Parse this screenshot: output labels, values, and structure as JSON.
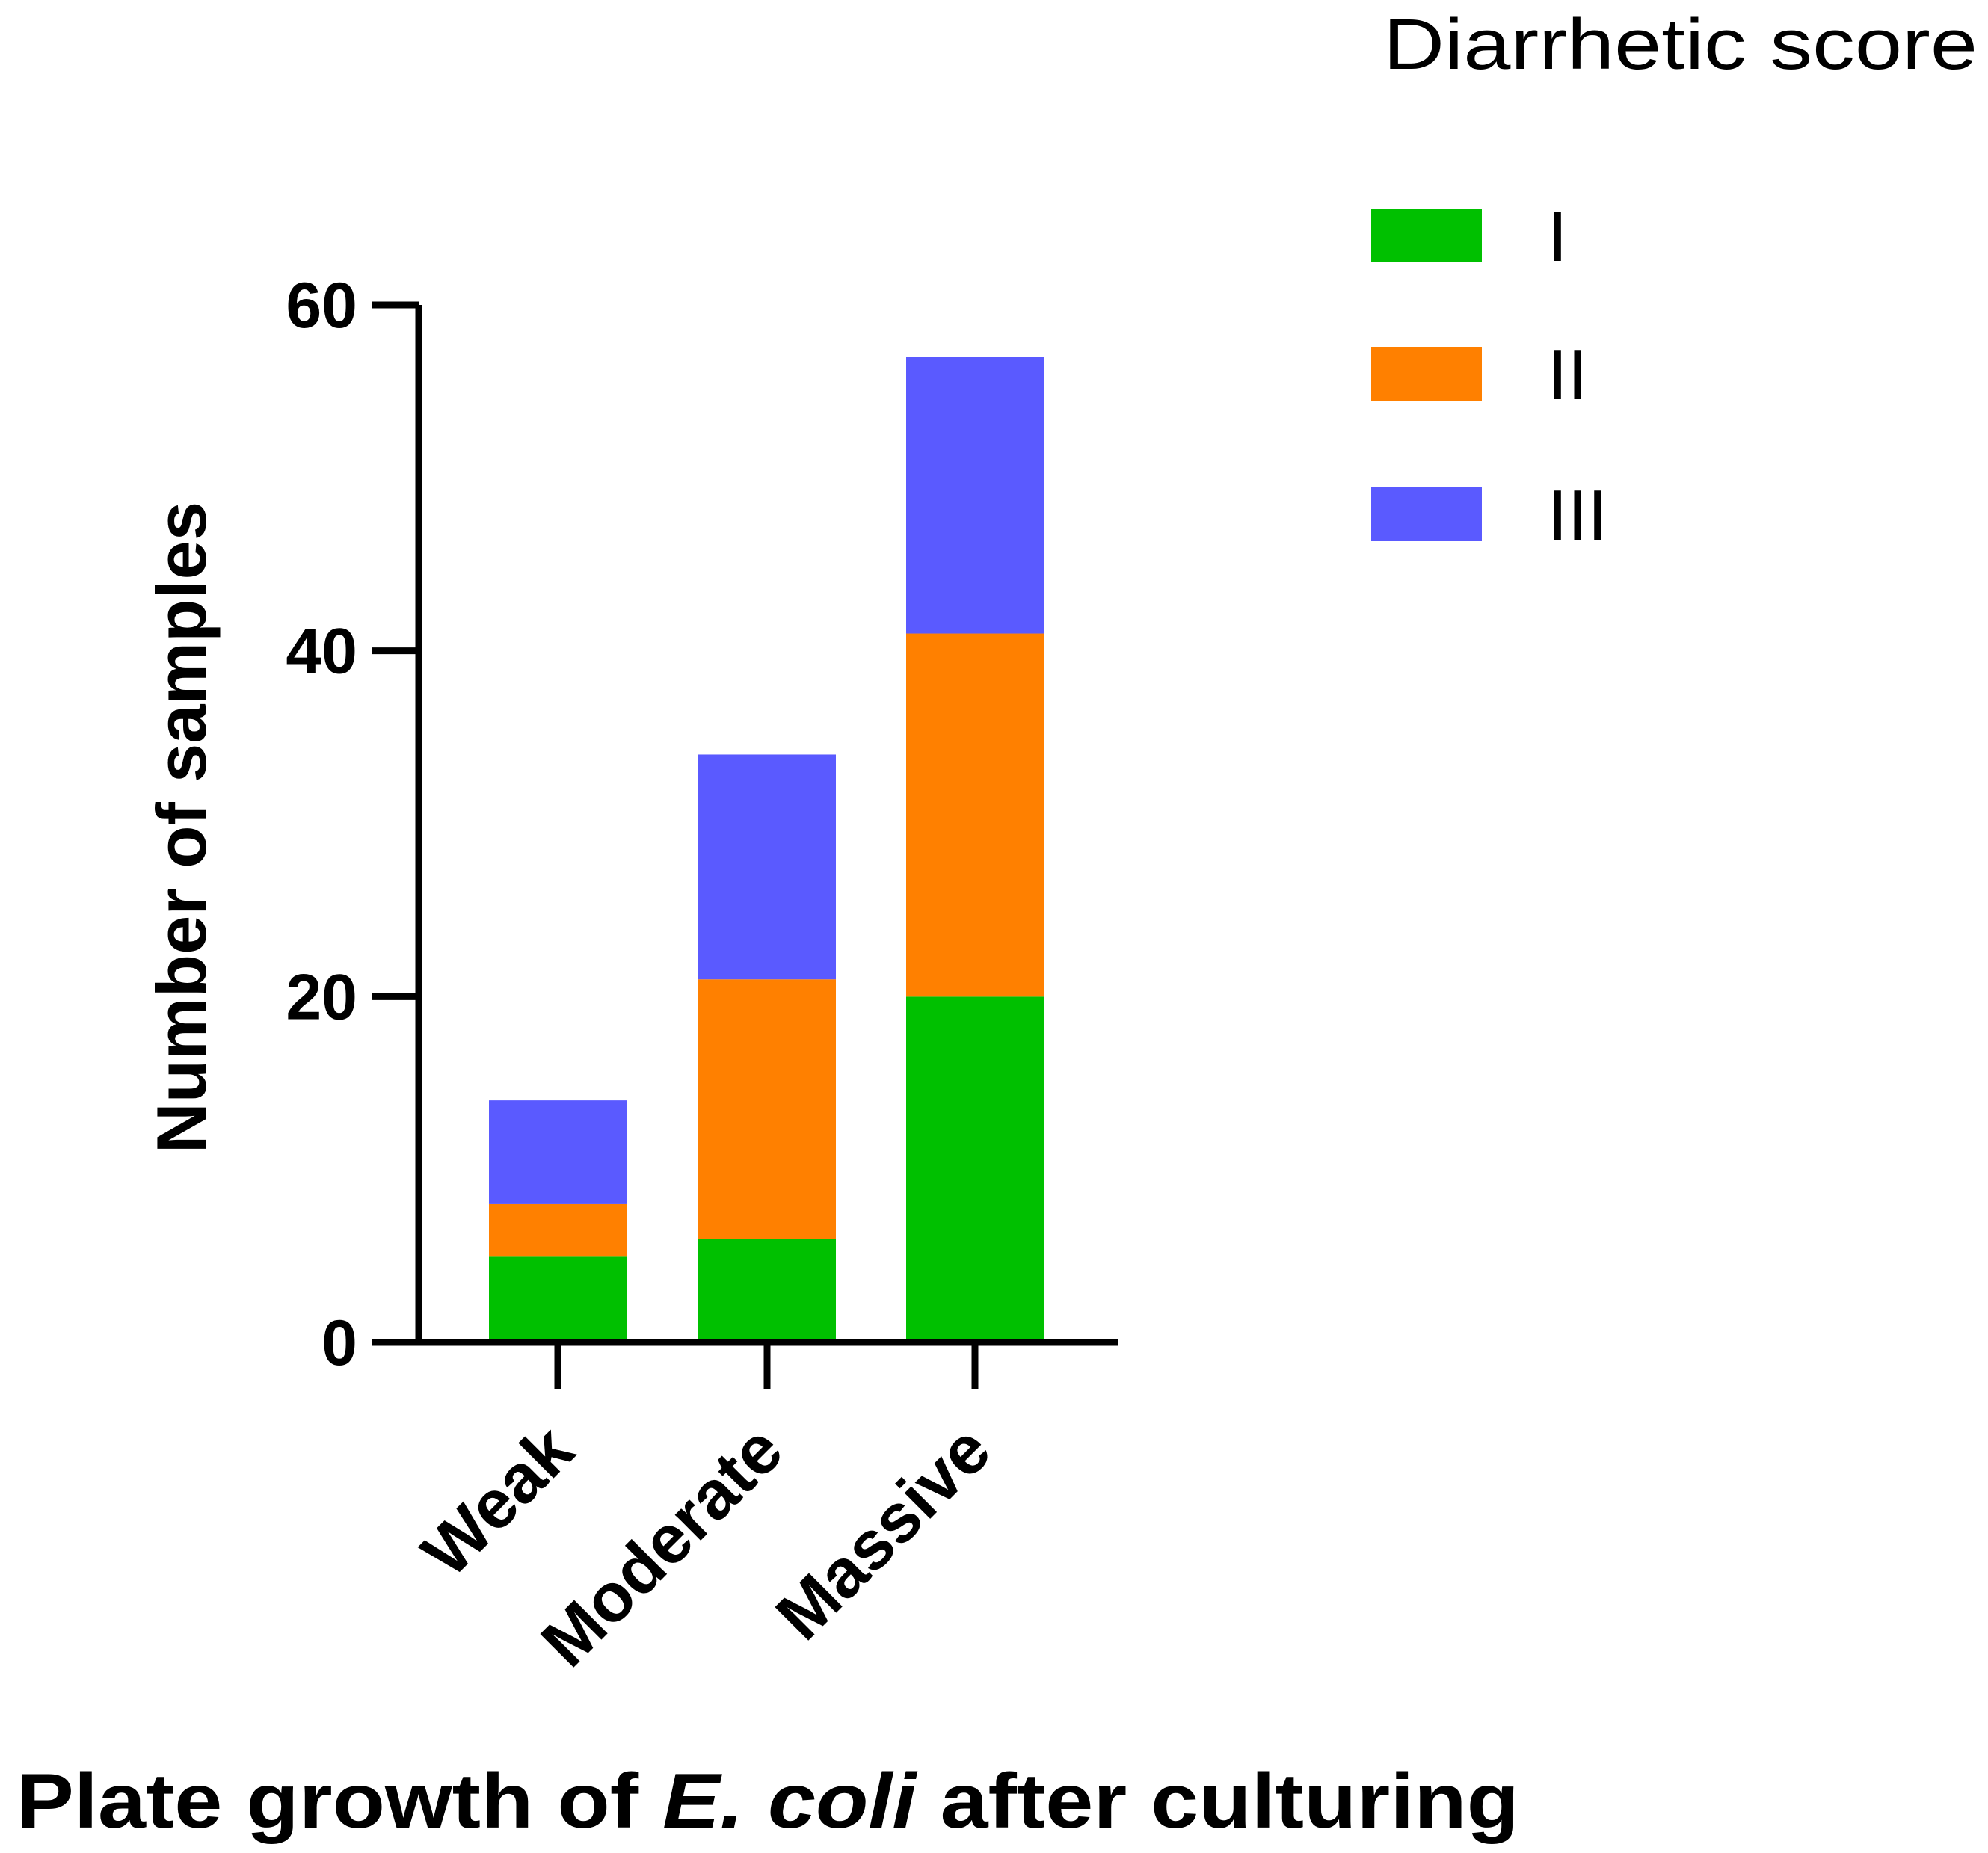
{
  "chart_data": {
    "type": "bar",
    "stacked": true,
    "categories": [
      "Weak",
      "Moderate",
      "Massive"
    ],
    "series": [
      {
        "name": "I",
        "color": "#00c000",
        "values": [
          5,
          6,
          20
        ]
      },
      {
        "name": "II",
        "color": "#ff8000",
        "values": [
          3,
          15,
          21
        ]
      },
      {
        "name": "III",
        "color": "#5a5aff",
        "values": [
          6,
          13,
          16
        ]
      }
    ],
    "xlabel": {
      "prefix": "Plate growth of ",
      "italic": "E. coli",
      "suffix": " after culturing"
    },
    "ylabel": "Number of samples",
    "ylim": [
      0,
      60
    ],
    "yticks": [
      0,
      20,
      40,
      60
    ],
    "legend": {
      "title": "Diarrhetic score",
      "position": "top-right"
    },
    "grid": false
  }
}
